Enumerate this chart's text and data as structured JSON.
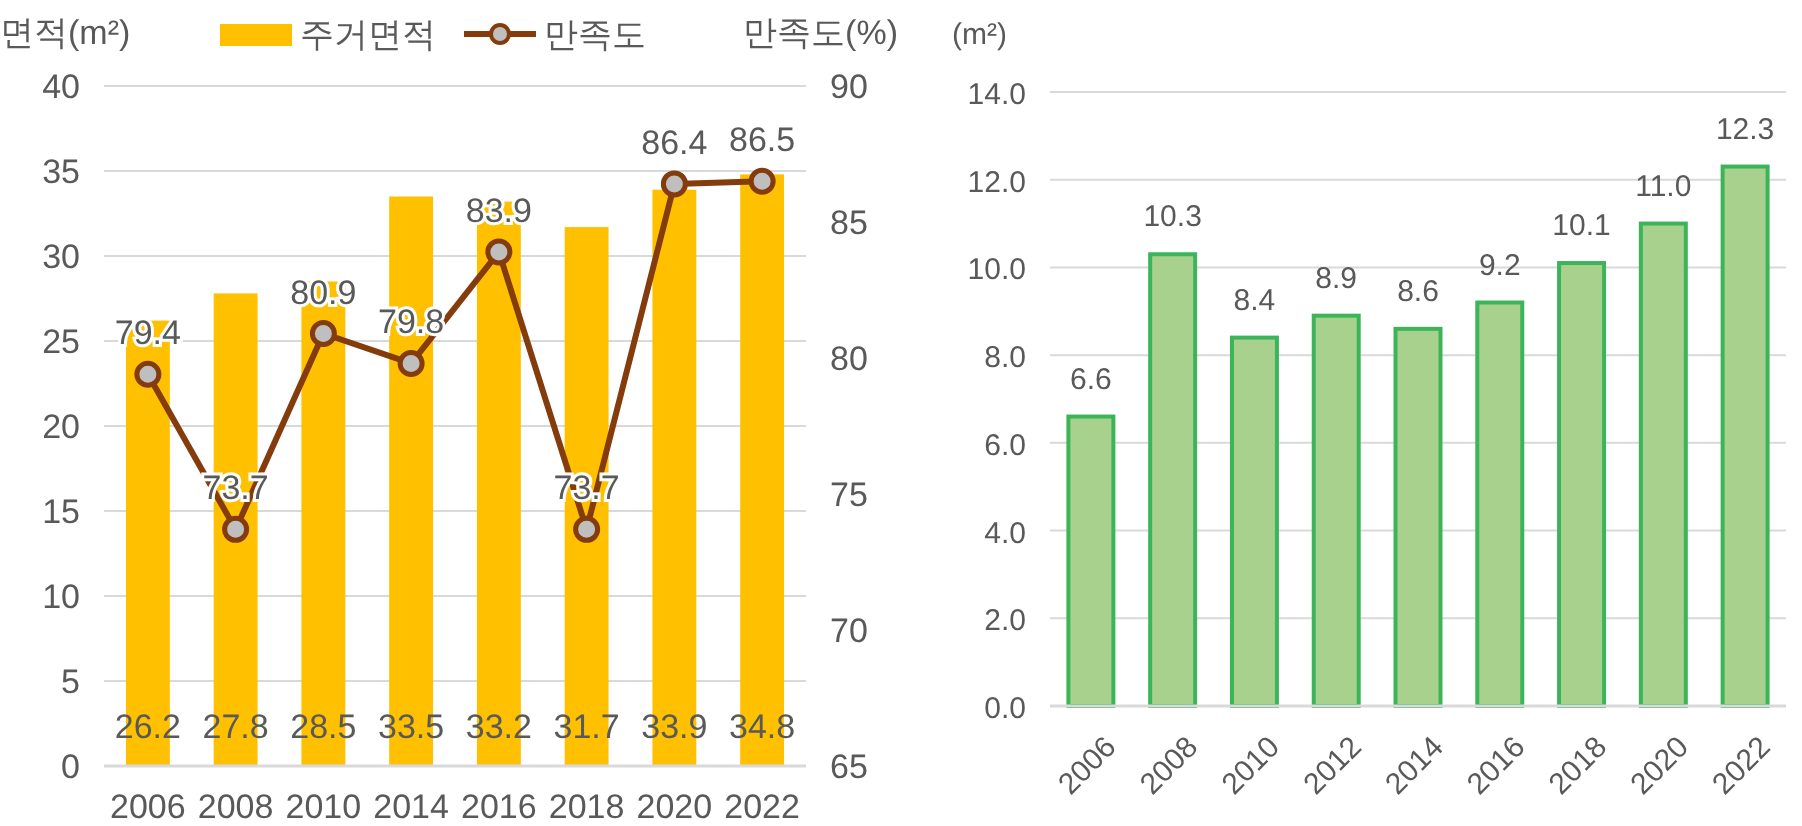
{
  "chart_data": [
    {
      "type": "bar",
      "ylabel": "면적(m²)",
      "y2label": "만족도(%)",
      "categories": [
        "2006",
        "2008",
        "2010",
        "2014",
        "2016",
        "2018",
        "2020",
        "2022"
      ],
      "series": [
        {
          "name": "주거면적",
          "color": "#ffc000",
          "values": [
            26.2,
            27.8,
            28.5,
            33.5,
            33.2,
            31.7,
            33.9,
            34.8
          ]
        },
        {
          "name": "만족도",
          "type": "line",
          "axis": "y2",
          "color": "#843c0c",
          "values": [
            79.4,
            73.7,
            80.9,
            79.8,
            83.9,
            73.7,
            86.4,
            86.5
          ]
        }
      ],
      "ylim": [
        0,
        40
      ],
      "yticks": [
        0,
        5,
        10,
        15,
        20,
        25,
        30,
        35,
        40
      ],
      "y2lim": [
        65,
        90
      ],
      "y2ticks": [
        65,
        70,
        75,
        80,
        85,
        90
      ],
      "grid": "y",
      "legend": "top",
      "marker": "circle",
      "data_labels": true
    },
    {
      "type": "bar",
      "ylabel": "(m²)",
      "categories": [
        "2006",
        "2008",
        "2010",
        "2012",
        "2014",
        "2016",
        "2018",
        "2020",
        "2022"
      ],
      "values": [
        6.6,
        10.3,
        8.4,
        8.9,
        8.6,
        9.2,
        10.1,
        11.0,
        12.3
      ],
      "value_labels": [
        "6.6",
        "10.3",
        "8.4",
        "8.9",
        "8.6",
        "9.2",
        "10.1",
        "11.0",
        "12.3"
      ],
      "color": "#a9d18e",
      "ylim": [
        0,
        14
      ],
      "yticks": [
        {
          "value": 0,
          "label": "0.0"
        },
        {
          "value": 2,
          "label": "2.0"
        },
        {
          "value": 4,
          "label": "4.0"
        },
        {
          "value": 6,
          "label": "6.0"
        },
        {
          "value": 8,
          "label": "8.0"
        },
        {
          "value": 10,
          "label": "10.0"
        },
        {
          "value": 12,
          "label": "12.0"
        },
        {
          "value": 14,
          "label": "14.0"
        }
      ],
      "grid": "y"
    }
  ]
}
